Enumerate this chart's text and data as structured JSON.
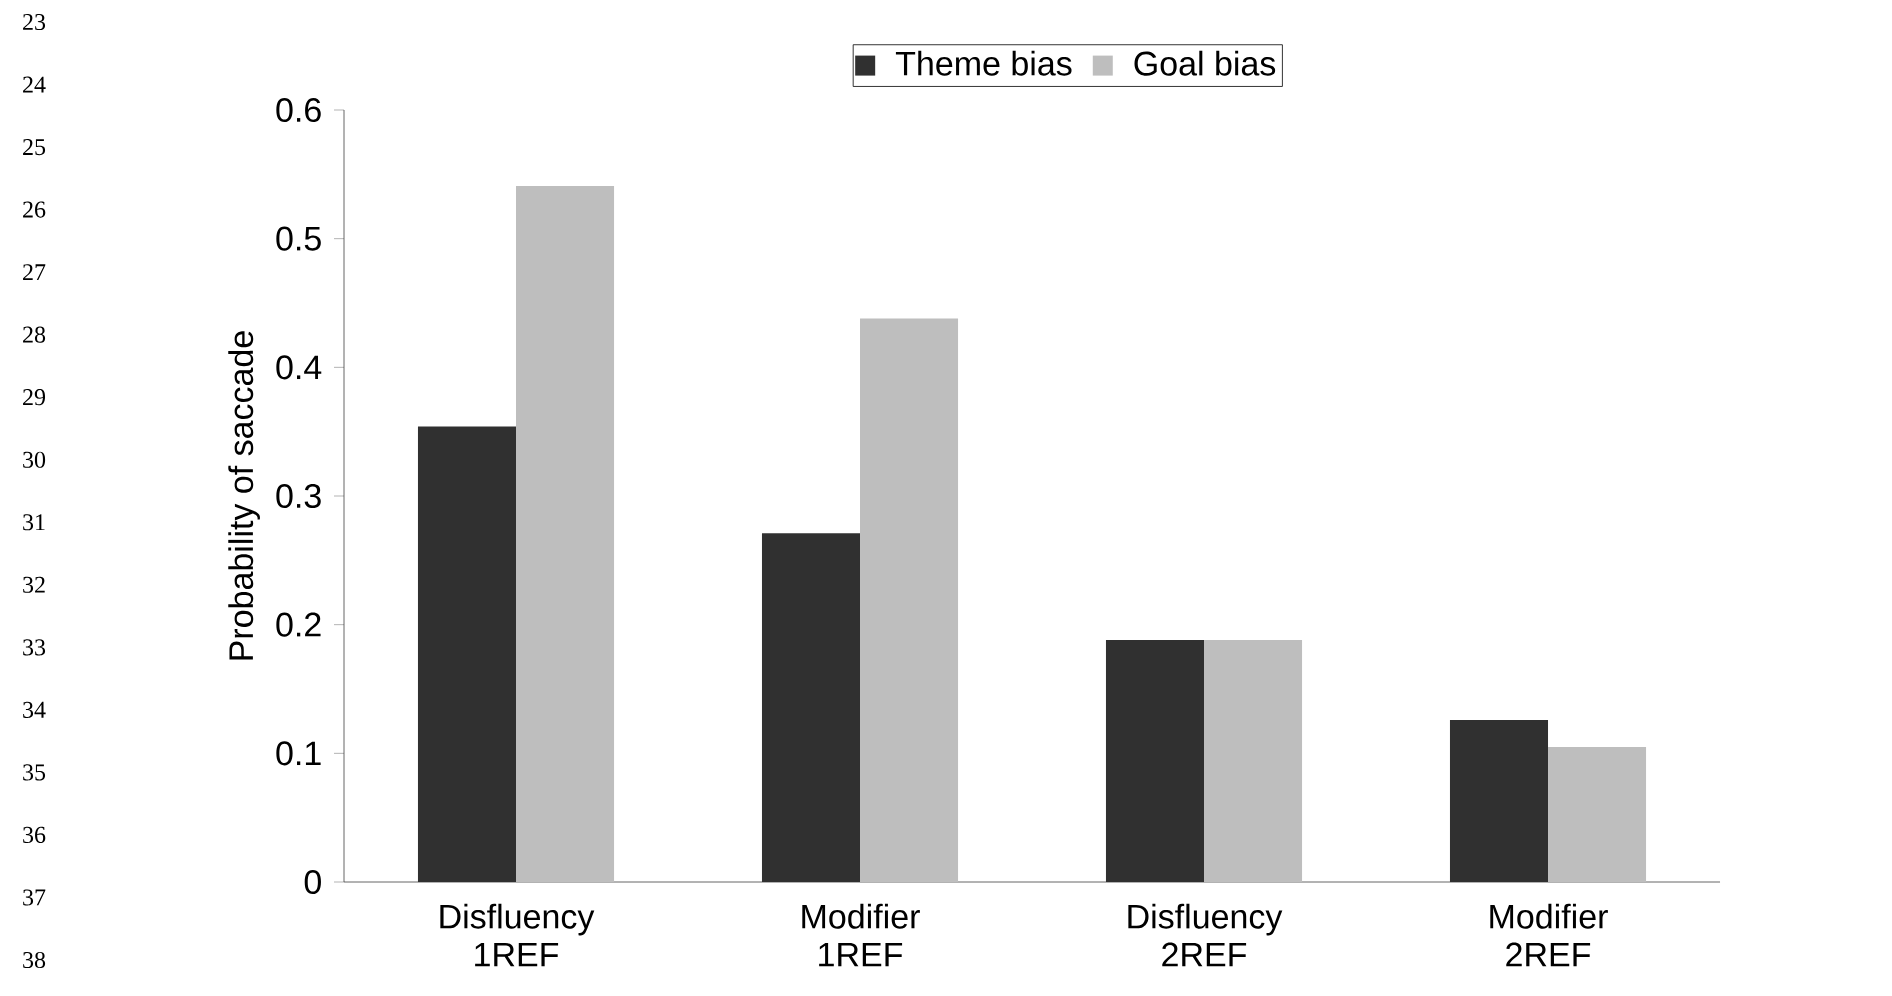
{
  "chart_data": {
    "type": "bar",
    "categories": [
      "Disfluency 1REF",
      "Modifier 1REF",
      "Disfluency 2REF",
      "Modifier 2REF"
    ],
    "series": [
      {
        "name": "Theme bias",
        "color": "#303030",
        "values": [
          0.354,
          0.271,
          0.188,
          0.126
        ]
      },
      {
        "name": "Goal bias",
        "color": "#bebebe",
        "values": [
          0.541,
          0.438,
          0.188,
          0.105
        ]
      }
    ],
    "ylabel": "Probability of saccade",
    "ylim": [
      0,
      0.6
    ],
    "yticks": [
      0,
      0.1,
      0.2,
      0.3,
      0.4,
      0.5,
      0.6
    ],
    "legend": "top",
    "grid": false,
    "annotations": [
      "23",
      "24",
      "25",
      "26",
      "27",
      "28",
      "29",
      "30",
      "31",
      "32",
      "33",
      "34",
      "35",
      "36",
      "37",
      "38"
    ]
  }
}
